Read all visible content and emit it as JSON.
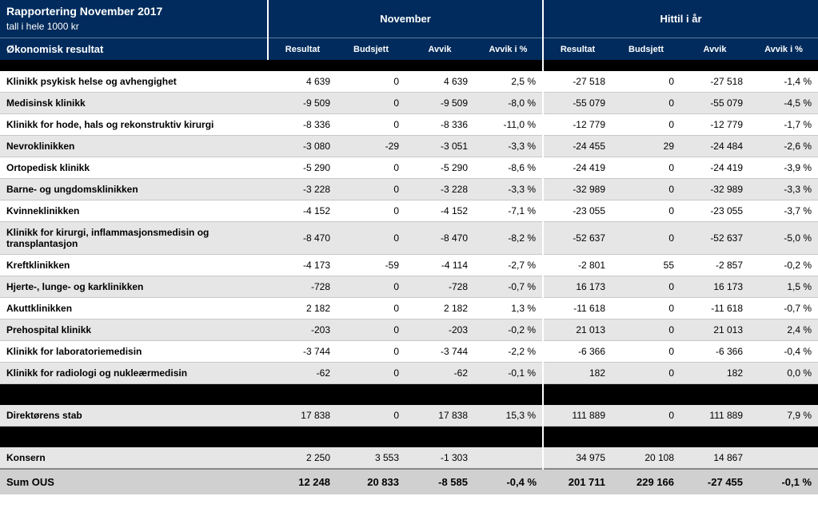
{
  "header": {
    "title_line1": "Rapportering November 2017",
    "title_line2": "tall i hele 1000 kr",
    "row_label": "Økonomisk resultat",
    "group_a": "November",
    "group_b": "Hittil i år",
    "cols": [
      "Resultat",
      "Budsjett",
      "Avvik",
      "Avvik i %",
      "Resultat",
      "Budsjett",
      "Avvik",
      "Avvik i %"
    ]
  },
  "rows": [
    {
      "name": "Klinikk psykisk helse og avhengighet",
      "v": [
        "4 639",
        "0",
        "4 639",
        "2,5 %",
        "-27 518",
        "0",
        "-27 518",
        "-1,4 %"
      ]
    },
    {
      "name": "Medisinsk klinikk",
      "v": [
        "-9 509",
        "0",
        "-9 509",
        "-8,0 %",
        "-55 079",
        "0",
        "-55 079",
        "-4,5 %"
      ]
    },
    {
      "name": "Klinikk for hode, hals og rekonstruktiv kirurgi",
      "v": [
        "-8 336",
        "0",
        "-8 336",
        "-11,0 %",
        "-12 779",
        "0",
        "-12 779",
        "-1,7 %"
      ]
    },
    {
      "name": "Nevroklinikken",
      "v": [
        "-3 080",
        "-29",
        "-3 051",
        "-3,3 %",
        "-24 455",
        "29",
        "-24 484",
        "-2,6 %"
      ]
    },
    {
      "name": "Ortopedisk klinikk",
      "v": [
        "-5 290",
        "0",
        "-5 290",
        "-8,6 %",
        "-24 419",
        "0",
        "-24 419",
        "-3,9 %"
      ]
    },
    {
      "name": "Barne- og ungdomsklinikken",
      "v": [
        "-3 228",
        "0",
        "-3 228",
        "-3,3 %",
        "-32 989",
        "0",
        "-32 989",
        "-3,3 %"
      ]
    },
    {
      "name": "Kvinneklinikken",
      "v": [
        "-4 152",
        "0",
        "-4 152",
        "-7,1 %",
        "-23 055",
        "0",
        "-23 055",
        "-3,7 %"
      ]
    },
    {
      "name": "Klinikk for kirurgi, inflammasjonsmedisin og transplantasjon",
      "v": [
        "-8 470",
        "0",
        "-8 470",
        "-8,2 %",
        "-52 637",
        "0",
        "-52 637",
        "-5,0 %"
      ]
    },
    {
      "name": "Kreftklinikken",
      "v": [
        "-4 173",
        "-59",
        "-4 114",
        "-2,7 %",
        "-2 801",
        "55",
        "-2 857",
        "-0,2 %"
      ]
    },
    {
      "name": "Hjerte-, lunge- og karklinikken",
      "v": [
        "-728",
        "0",
        "-728",
        "-0,7 %",
        "16 173",
        "0",
        "16 173",
        "1,5 %"
      ]
    },
    {
      "name": "Akuttklinikken",
      "v": [
        "2 182",
        "0",
        "2 182",
        "1,3 %",
        "-11 618",
        "0",
        "-11 618",
        "-0,7 %"
      ]
    },
    {
      "name": "Prehospital klinikk",
      "v": [
        "-203",
        "0",
        "-203",
        "-0,2 %",
        "21 013",
        "0",
        "21 013",
        "2,4 %"
      ]
    },
    {
      "name": "Klinikk for laboratoriemedisin",
      "v": [
        "-3 744",
        "0",
        "-3 744",
        "-2,2 %",
        "-6 366",
        "0",
        "-6 366",
        "-0,4 %"
      ]
    },
    {
      "name": "Klinikk for radiologi og nukleærmedisin",
      "v": [
        "-62",
        "0",
        "-62",
        "-0,1 %",
        "182",
        "0",
        "182",
        "0,0 %"
      ]
    }
  ],
  "rows2": [
    {
      "name": "Direktørens stab",
      "v": [
        "17 838",
        "0",
        "17 838",
        "15,3 %",
        "111 889",
        "0",
        "111 889",
        "7,9 %"
      ]
    }
  ],
  "rows3": [
    {
      "name": "Konsern",
      "v": [
        "2 250",
        "3 553",
        "-1 303",
        "",
        "34 975",
        "20 108",
        "14 867",
        ""
      ]
    }
  ],
  "sumrow": {
    "name": "Sum OUS",
    "v": [
      "12 248",
      "20 833",
      "-8 585",
      "-0,4 %",
      "201 711",
      "229 166",
      "-27 455",
      "-0,1 %"
    ]
  },
  "style": {
    "header_bg": "#002b5c",
    "zebra_grey": "#e6e6e6",
    "grid": "#c8c8c8",
    "sum_bg": "#d0d0d0"
  }
}
